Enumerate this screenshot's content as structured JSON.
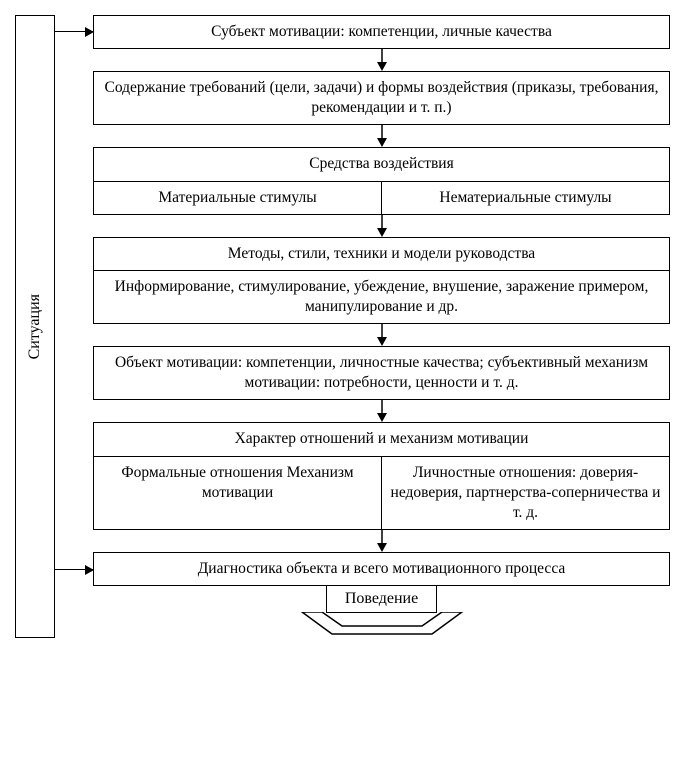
{
  "diagram": {
    "type": "flowchart",
    "sidebar_label": "Ситуация",
    "border_color": "#000000",
    "background_color": "#ffffff",
    "font_family": "Georgia, serif",
    "font_size_pt": 12,
    "nodes": {
      "n1": {
        "text": "Субъект мотивации: компетенции, личные качества"
      },
      "n2": {
        "text": "Содержание требований (цели, задачи) и формы воздействия (приказы, требования, рекомендации и т. п.)"
      },
      "n3": {
        "header": "Средства воздействия",
        "left": "Материальные стимулы",
        "right": "Нематериальные стимулы"
      },
      "n4": {
        "header": "Методы, стили, техники и модели руководства",
        "body": "Информирование, стимулирование, убеждение, внушение, заражение примером, манипулирование и др."
      },
      "n5": {
        "text": "Объект мотивации: компетенции, личностные качества; субъективный механизм мотивации: потребности, ценности и т. д."
      },
      "n6": {
        "header": "Характер отношений и механизм мотивации",
        "left": "Формальные отношения Механизм мотивации",
        "right": "Личностные отношения: доверия-недоверия, партнерства-соперничества и т. д."
      },
      "n7": {
        "text": "Диагностика объекта и всего мотивационного процесса"
      },
      "final": {
        "text": "Поведение"
      }
    },
    "side_arrows_to": [
      "n1",
      "n7"
    ],
    "down_arrows_between": [
      [
        "n1",
        "n2"
      ],
      [
        "n2",
        "n3"
      ],
      [
        "n3",
        "n4"
      ],
      [
        "n4",
        "n5"
      ],
      [
        "n5",
        "n6"
      ],
      [
        "n6",
        "n7"
      ]
    ]
  }
}
